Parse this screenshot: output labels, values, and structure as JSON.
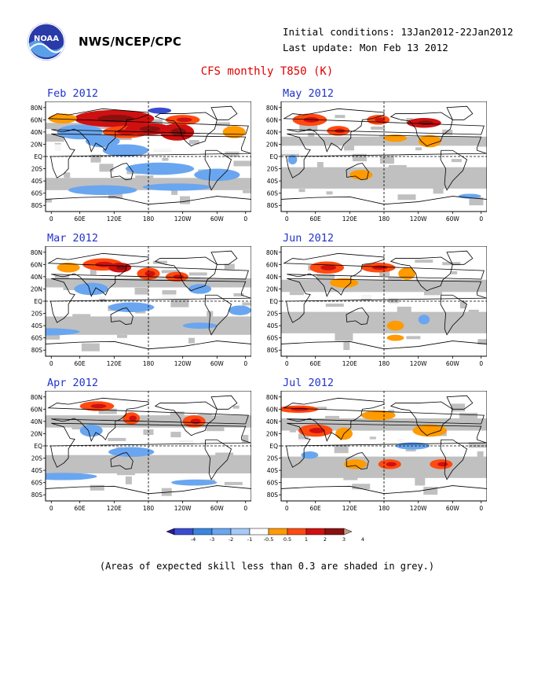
{
  "header": {
    "agency": "NWS/NCEP/CPC",
    "initial_conditions": "Initial conditions: 13Jan2012-22Jan2012",
    "last_update": "Last update: Mon Feb 13 2012",
    "title": "CFS monthly T850 (K)"
  },
  "map_axes": {
    "lat_labels": [
      "80N",
      "60N",
      "40N",
      "20N",
      "EQ",
      "20S",
      "40S",
      "60S",
      "80S"
    ],
    "lon_labels": [
      "0",
      "60E",
      "120E",
      "180",
      "120W",
      "60W",
      "0"
    ]
  },
  "panels": [
    {
      "label": "Feb 2012",
      "anomaly_pattern": "strong warm anomalies over Eurasia, north Pacific and North America; cool anomalies over Asia and tropical Pacific"
    },
    {
      "label": "May 2012",
      "anomaly_pattern": "warm anomalies over northern Eurasia and Asia; mostly low skill elsewhere"
    },
    {
      "label": "Mar 2012",
      "anomaly_pattern": "warm anomalies over Eurasia, north Pacific and eastern North America"
    },
    {
      "label": "Jun 2012",
      "anomaly_pattern": "warm anomalies over central Asia and north Pacific; small warm areas in southern Pacific"
    },
    {
      "label": "Apr 2012",
      "anomaly_pattern": "warm anomalies over Siberia, north Pacific and eastern North America"
    },
    {
      "label": "Jul 2012",
      "anomaly_pattern": "warm anomalies over Eurasia, Africa and eastern Pacific"
    }
  ],
  "legend": {
    "tick_labels": [
      "-4",
      "-3",
      "-2",
      "-1",
      "-0.5",
      "0.5",
      "1",
      "2",
      "3",
      "4"
    ],
    "colors": [
      "#2a1a9a",
      "#3a4ccf",
      "#3a86e0",
      "#6aa6f0",
      "#a6cbf8",
      "#ffffff",
      "#ff9a00",
      "#ff4a10",
      "#d01010",
      "#8a1010",
      "#c69a8a"
    ]
  },
  "colors": {
    "grey_low_skill": "#c0c0c0",
    "title_red": "#e00000",
    "panel_label_blue": "#2233cc"
  },
  "footnote": "(Areas of expected skill less than 0.3 are shaded in grey.)"
}
